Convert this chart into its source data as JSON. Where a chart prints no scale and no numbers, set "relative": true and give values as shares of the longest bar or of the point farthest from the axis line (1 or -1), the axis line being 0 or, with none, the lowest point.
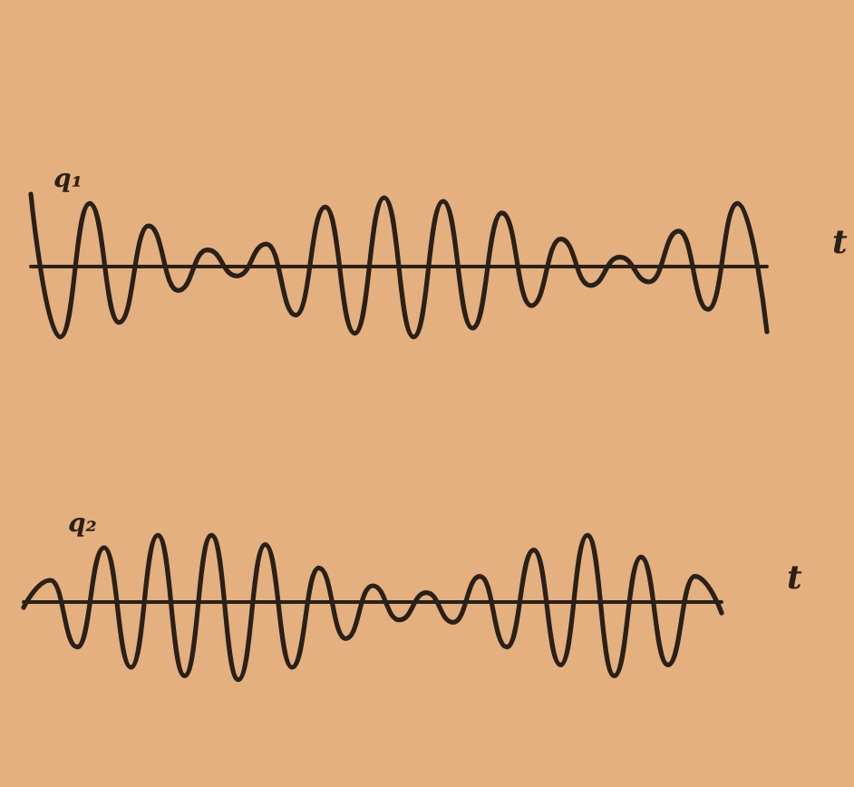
{
  "chart_data": [
    {
      "type": "line",
      "relative": true,
      "xlabel": "t",
      "categories": [
        null,
        null,
        null,
        null,
        null,
        null,
        null,
        null,
        null,
        null,
        null,
        null,
        null,
        null,
        null,
        null,
        null,
        null,
        null,
        null,
        null,
        null,
        null,
        null,
        null,
        null
      ],
      "series": [
        {
          "name": "q₁",
          "color": "#2a2018",
          "values": [
            1,
            -0.97,
            0.87,
            -0.77,
            0.56,
            -0.33,
            0.23,
            -0.13,
            0.31,
            -0.67,
            0.82,
            -0.92,
            0.95,
            -0.97,
            0.9,
            -0.85,
            0.74,
            -0.54,
            0.38,
            -0.26,
            0.13,
            -0.21,
            0.49,
            -0.59,
            0.87,
            -0.9
          ]
        }
      ],
      "marker": "none",
      "line_style": "solid",
      "grid": false,
      "legend": false
    },
    {
      "type": "line",
      "relative": true,
      "xlabel": "t",
      "categories": [
        null,
        null,
        null,
        null,
        null,
        null,
        null,
        null,
        null,
        null,
        null,
        null,
        null,
        null,
        null,
        null,
        null,
        null,
        null,
        null,
        null,
        null,
        null,
        null,
        null,
        null,
        null
      ],
      "series": [
        {
          "name": "q₂",
          "color": "#2a2018",
          "values": [
            -0.07,
            0.28,
            -0.58,
            0.7,
            -0.84,
            0.86,
            -0.95,
            0.86,
            -1,
            0.74,
            -0.84,
            0.44,
            -0.47,
            0.21,
            -0.23,
            0.12,
            -0.26,
            0.33,
            -0.58,
            0.67,
            -0.81,
            0.86,
            -0.95,
            0.58,
            -0.81,
            0.33,
            -0.14
          ]
        }
      ],
      "marker": "none",
      "line_style": "solid",
      "grid": false,
      "legend": false
    }
  ]
}
